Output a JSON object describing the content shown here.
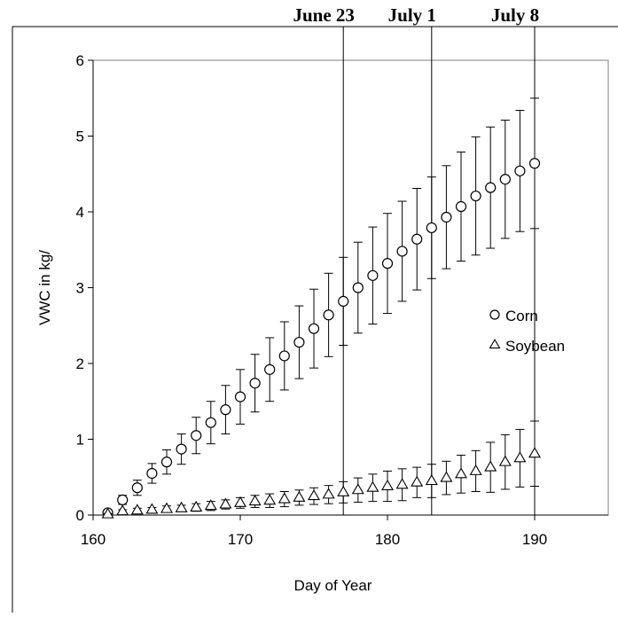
{
  "chart_data": {
    "type": "scatter",
    "xlabel": "Day of Year",
    "ylabel": "VWC in kg/",
    "xlim": [
      160,
      195
    ],
    "ylim": [
      0,
      6
    ],
    "x_ticks": [
      160,
      170,
      180,
      190
    ],
    "y_ticks": [
      0,
      1,
      2,
      3,
      4,
      5,
      6
    ],
    "grid": false,
    "legend_position": "right",
    "error_bars": true,
    "reference_lines": [
      {
        "x": 177,
        "label": "June 23"
      },
      {
        "x": 183,
        "label": "July 1"
      },
      {
        "x": 190,
        "label": "July 8"
      }
    ],
    "series": [
      {
        "name": "Corn",
        "marker": "circle",
        "x": [
          161,
          162,
          163,
          164,
          165,
          166,
          167,
          168,
          169,
          170,
          171,
          172,
          173,
          174,
          175,
          176,
          177,
          178,
          179,
          180,
          181,
          182,
          183,
          184,
          185,
          186,
          187,
          188,
          189,
          190
        ],
        "y": [
          0.03,
          0.2,
          0.36,
          0.55,
          0.7,
          0.87,
          1.05,
          1.22,
          1.39,
          1.56,
          1.74,
          1.92,
          2.1,
          2.28,
          2.46,
          2.64,
          2.82,
          3.0,
          3.16,
          3.32,
          3.48,
          3.64,
          3.79,
          3.93,
          4.07,
          4.21,
          4.32,
          4.43,
          4.54,
          4.64
        ],
        "error": [
          0.03,
          0.06,
          0.1,
          0.13,
          0.16,
          0.2,
          0.24,
          0.28,
          0.32,
          0.36,
          0.38,
          0.42,
          0.45,
          0.48,
          0.52,
          0.55,
          0.58,
          0.6,
          0.64,
          0.66,
          0.66,
          0.67,
          0.67,
          0.68,
          0.72,
          0.78,
          0.8,
          0.78,
          0.8,
          0.86
        ]
      },
      {
        "name": "Soybean",
        "marker": "triangle",
        "x": [
          161,
          162,
          163,
          164,
          165,
          166,
          167,
          168,
          169,
          170,
          171,
          172,
          173,
          174,
          175,
          176,
          177,
          178,
          179,
          180,
          181,
          182,
          183,
          184,
          185,
          186,
          187,
          188,
          189,
          190
        ],
        "y": [
          0.01,
          0.05,
          0.06,
          0.07,
          0.08,
          0.09,
          0.1,
          0.12,
          0.14,
          0.16,
          0.18,
          0.19,
          0.21,
          0.23,
          0.25,
          0.27,
          0.3,
          0.33,
          0.36,
          0.38,
          0.4,
          0.43,
          0.45,
          0.49,
          0.54,
          0.58,
          0.63,
          0.7,
          0.75,
          0.81
        ],
        "error": [
          0.01,
          0.02,
          0.03,
          0.03,
          0.04,
          0.04,
          0.05,
          0.06,
          0.06,
          0.07,
          0.08,
          0.09,
          0.1,
          0.1,
          0.11,
          0.12,
          0.14,
          0.16,
          0.18,
          0.2,
          0.21,
          0.2,
          0.22,
          0.22,
          0.25,
          0.27,
          0.33,
          0.36,
          0.38,
          0.43
        ]
      }
    ]
  }
}
